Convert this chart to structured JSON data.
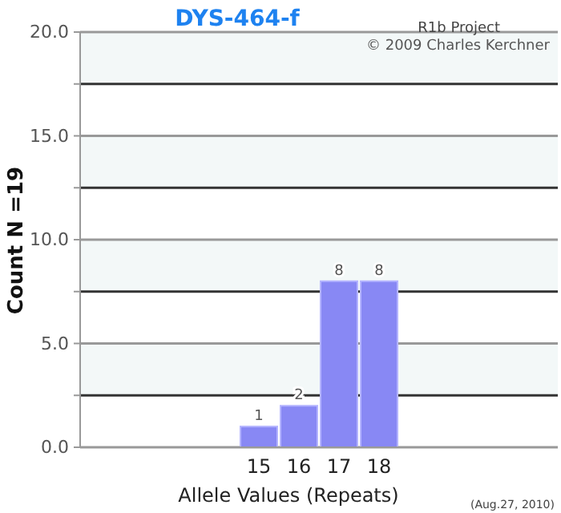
{
  "chart_data": {
    "type": "bar",
    "title": "DYS-464-f",
    "xlabel": "Allele Values (Repeats)",
    "ylabel": "Count N =19",
    "categories": [
      null,
      null,
      null,
      null,
      "15",
      "16",
      "17",
      "18",
      null,
      null,
      null,
      null
    ],
    "values": [
      null,
      null,
      null,
      null,
      1,
      2,
      8,
      8,
      null,
      null,
      null,
      null
    ],
    "color": "#8888f4",
    "data_labels": true,
    "ylim": [
      0,
      20
    ],
    "yticks": [
      {
        "value": 0,
        "label": "0.0"
      },
      {
        "value": 2.5,
        "label": null
      },
      {
        "value": 5,
        "label": "5.0"
      },
      {
        "value": 7.5,
        "label": null
      },
      {
        "value": 10,
        "label": "10.0"
      },
      {
        "value": 12.5,
        "label": null
      },
      {
        "value": 15,
        "label": "15.0"
      },
      {
        "value": 17.5,
        "label": null
      },
      {
        "value": 20,
        "label": "20.0"
      }
    ],
    "grid": "y",
    "annotations": [
      "R1b Project",
      "© 2009 Charles Kerchner",
      "(Aug.27, 2010)"
    ]
  }
}
